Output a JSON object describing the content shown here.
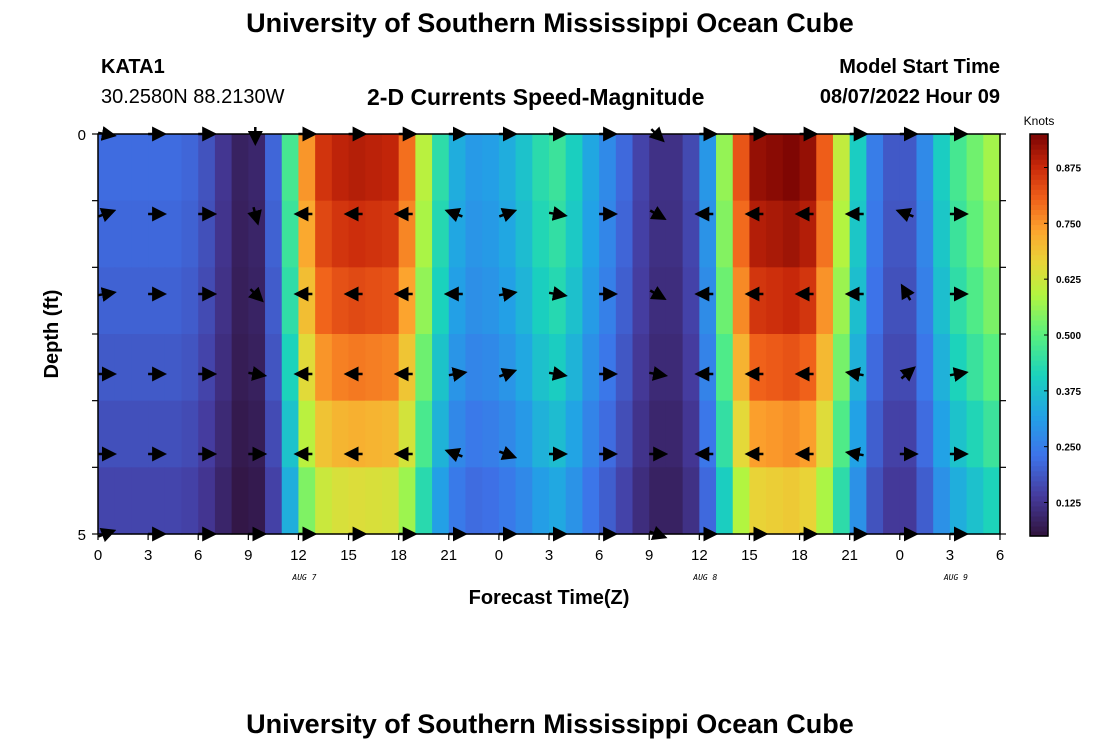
{
  "header": {
    "title": "University of Southern Mississippi Ocean Cube",
    "station_id": "KATA1",
    "station_coords": "30.2580N  88.2130W",
    "start_label": "Model Start Time",
    "start_value": "08/07/2022 Hour 09"
  },
  "footer": {
    "title": "University of Southern Mississippi Ocean Cube"
  },
  "chart_data": {
    "type": "heatmap",
    "title": "2-D Currents Speed-Magnitude",
    "xlabel": "Forecast Time(Z)",
    "ylabel": "Depth (ft)",
    "x_ticks": [
      "0",
      "3",
      "6",
      "9",
      "12",
      "15",
      "18",
      "21",
      "0",
      "3",
      "6",
      "9",
      "12",
      "15",
      "18",
      "21",
      "0",
      "3",
      "6"
    ],
    "x_hours": [
      0,
      3,
      6,
      9,
      12,
      15,
      18,
      21,
      24,
      27,
      30,
      33,
      36,
      39,
      42,
      45,
      48,
      51,
      54
    ],
    "x_range": [
      0,
      54
    ],
    "date_labels": [
      {
        "label": "AUG 7",
        "hour": 12
      },
      {
        "label": "AUG 8",
        "hour": 36
      },
      {
        "label": "AUG 9",
        "hour": 51
      }
    ],
    "y_ticks": [
      "0",
      "5"
    ],
    "y_range": [
      0,
      5
    ],
    "depth_rows": 5,
    "colorbar": {
      "label": "Knots",
      "range": [
        0.05,
        0.95
      ],
      "ticks": [
        "0.125",
        "0.250",
        "0.375",
        "0.500",
        "0.625",
        "0.750",
        "0.875"
      ],
      "tick_values": [
        0.125,
        0.25,
        0.375,
        0.5,
        0.625,
        0.75,
        0.875
      ]
    },
    "speed_profile_hours": [
      0,
      5,
      6,
      7,
      8,
      9,
      10,
      11,
      12,
      13,
      15,
      18,
      19,
      20,
      21,
      22,
      24,
      26,
      27,
      28,
      29,
      30,
      31,
      32,
      33,
      34,
      35,
      36,
      37,
      38,
      39,
      42,
      43,
      44,
      45,
      46,
      47,
      48,
      49,
      50,
      51,
      52,
      53,
      54
    ],
    "speed_profile_knots": [
      0.22,
      0.22,
      0.2,
      0.16,
      0.1,
      0.07,
      0.12,
      0.3,
      0.65,
      0.85,
      0.9,
      0.88,
      0.7,
      0.5,
      0.38,
      0.3,
      0.32,
      0.4,
      0.47,
      0.45,
      0.36,
      0.3,
      0.25,
      0.18,
      0.13,
      0.11,
      0.13,
      0.2,
      0.4,
      0.72,
      0.92,
      0.95,
      0.9,
      0.72,
      0.5,
      0.3,
      0.2,
      0.18,
      0.2,
      0.35,
      0.45,
      0.5,
      0.55,
      0.6
    ],
    "depth_factors": [
      1.0,
      0.97,
      0.93,
      0.87,
      0.8,
      0.72
    ],
    "vectors": {
      "hours": [
        0,
        3,
        6,
        9,
        12,
        15,
        18,
        21,
        24,
        27,
        30,
        33,
        36,
        39,
        42,
        45,
        48,
        51
      ],
      "angles_deg_by_row": [
        [
          10,
          0,
          0,
          90,
          0,
          0,
          0,
          0,
          0,
          0,
          0,
          45,
          0,
          0,
          0,
          0,
          0,
          0
        ],
        [
          -20,
          0,
          0,
          75,
          180,
          180,
          180,
          200,
          -20,
          10,
          0,
          30,
          180,
          180,
          180,
          180,
          200,
          0
        ],
        [
          -10,
          0,
          0,
          45,
          180,
          180,
          180,
          180,
          -10,
          10,
          0,
          30,
          180,
          180,
          180,
          180,
          240,
          0
        ],
        [
          0,
          0,
          0,
          10,
          180,
          180,
          180,
          -10,
          -20,
          10,
          0,
          10,
          180,
          180,
          180,
          190,
          -40,
          -10
        ],
        [
          0,
          0,
          0,
          0,
          180,
          180,
          180,
          200,
          20,
          0,
          0,
          0,
          180,
          180,
          180,
          190,
          0,
          0
        ],
        [
          -20,
          0,
          0,
          0,
          0,
          0,
          0,
          0,
          0,
          0,
          0,
          20,
          0,
          0,
          0,
          0,
          0,
          0
        ]
      ]
    }
  }
}
